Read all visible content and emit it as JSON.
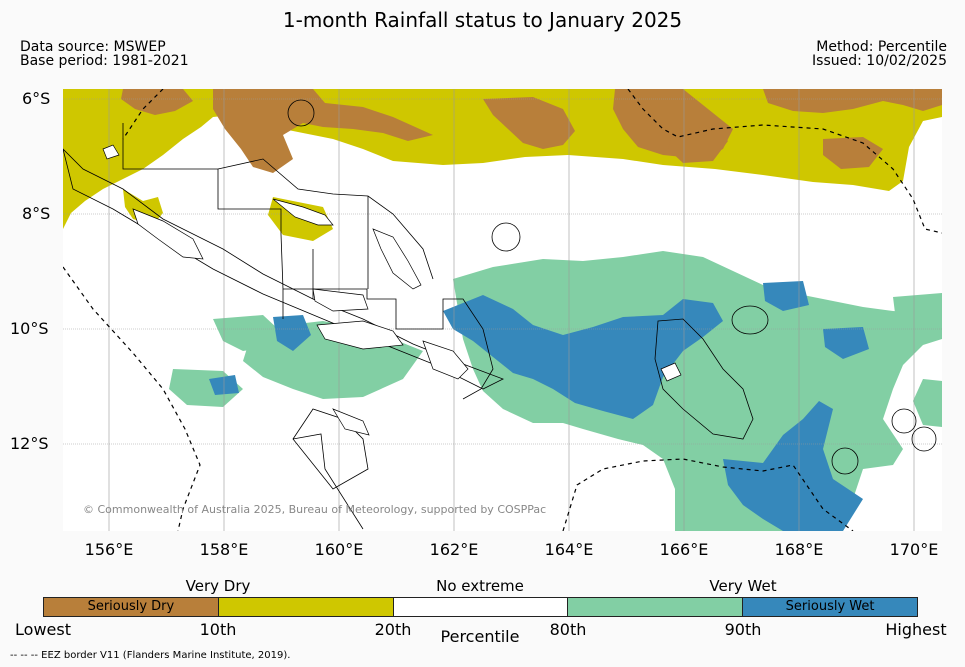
{
  "title": "1-month Rainfall status to January 2025",
  "meta": {
    "source": "Data source: MSWEP",
    "base": "Base period: 1981-2021",
    "method": "Method: Percentile",
    "issued": "Issued: 10/02/2025"
  },
  "axes": {
    "lat_labels": [
      "6°S",
      "8°S",
      "10°S",
      "12°S"
    ],
    "lon_labels": [
      "156°E",
      "158°E",
      "160°E",
      "162°E",
      "164°E",
      "166°E",
      "168°E",
      "170°E"
    ]
  },
  "copyright": "© Commonwealth of Australia 2025, Bureau of Meteorology, supported by COSPPac",
  "legend": {
    "captions": [
      "Very Dry",
      "No extreme",
      "Very Wet"
    ],
    "segments": [
      {
        "label": "Seriously Dry",
        "color": "#b87f3a"
      },
      {
        "label": "",
        "color": "#cfc700"
      },
      {
        "label": "",
        "color": "#ffffff"
      },
      {
        "label": "",
        "color": "#82cfa4"
      },
      {
        "label": "Seriously Wet",
        "color": "#3688bb"
      }
    ],
    "ticks": [
      "Lowest",
      "10th",
      "20th",
      "80th",
      "90th",
      "Highest"
    ],
    "axis_title": "Percentile"
  },
  "footer": "--  --  -- EEZ border V11 (Flanders Marine Institute, 2019)."
}
